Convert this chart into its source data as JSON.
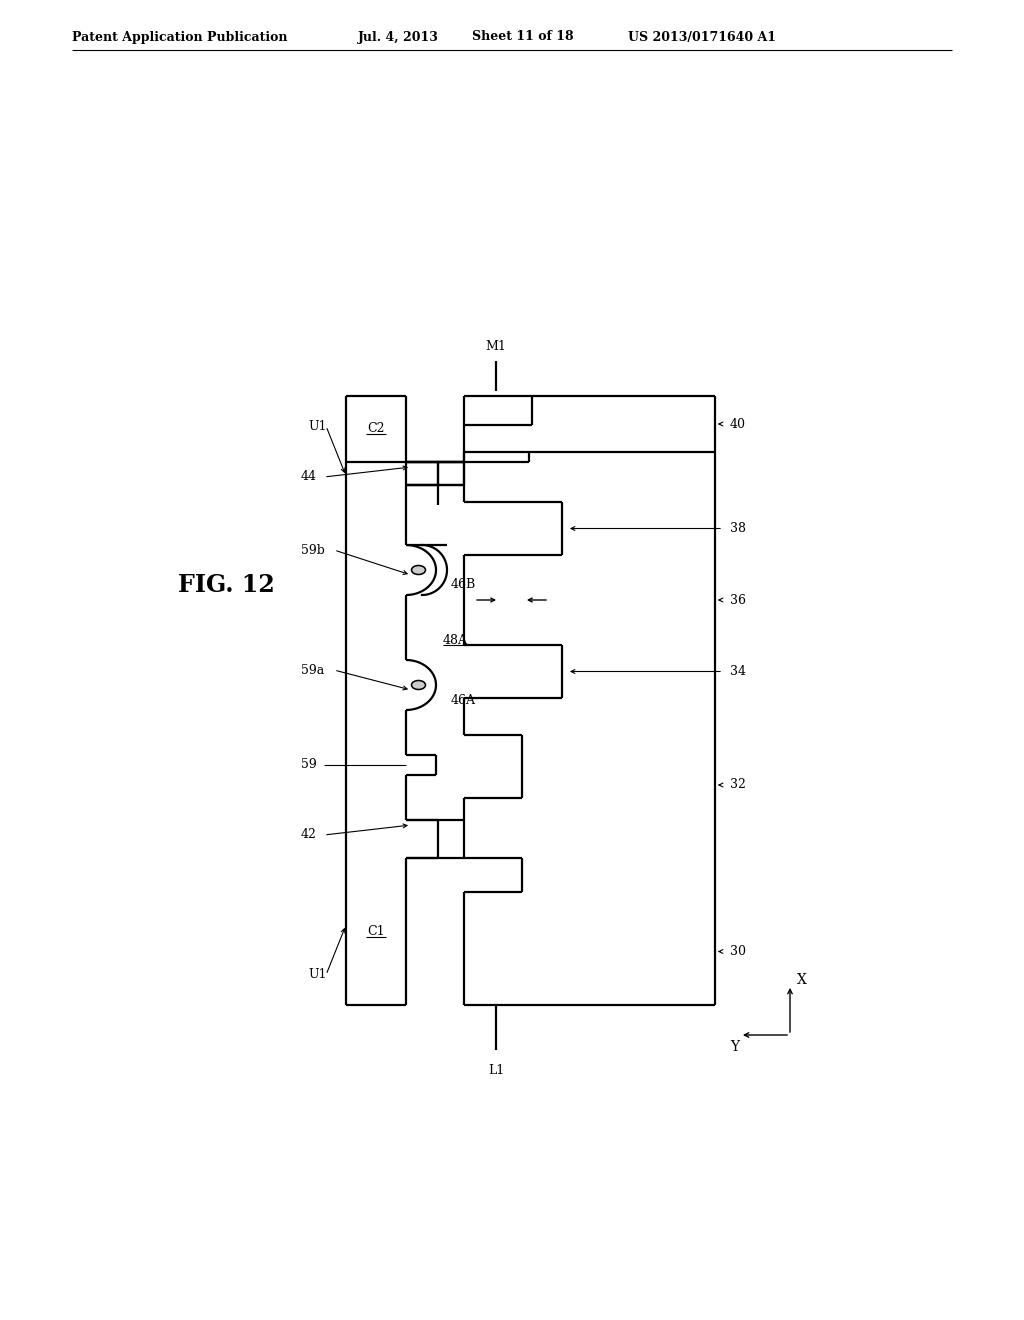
{
  "title_left": "Patent Application Publication",
  "title_mid": "Jul. 4, 2013",
  "title_sheet": "Sheet 11 of 18",
  "title_right": "US 2013/0171640 A1",
  "fig_label": "FIG. 12",
  "bg_color": "#ffffff",
  "line_color": "#000000",
  "lw": 1.6,
  "fs": 9
}
